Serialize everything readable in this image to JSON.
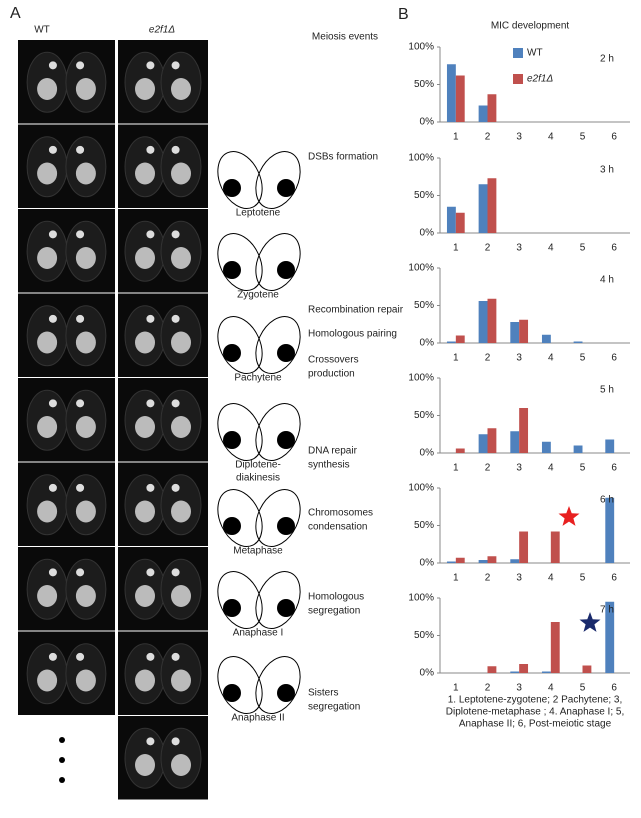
{
  "panel_a": {
    "label": "A",
    "columns": [
      "WT",
      "e2f1Δ"
    ],
    "events_title": "Meiosis events",
    "stages": [
      [
        "Leptotene"
      ],
      [
        "Zygotene"
      ],
      [
        "Pachytene"
      ],
      [
        "Diplotene-",
        "diakinesis"
      ],
      [
        "Metaphase"
      ],
      [
        "Anaphase I"
      ],
      [
        "Anaphase II"
      ]
    ],
    "events": [
      [
        "DSBs formation"
      ],
      [
        "Recombination repair"
      ],
      [
        "Homologous  pairing"
      ],
      [
        "Crossovers",
        "production"
      ],
      [
        "DNA repair",
        "synthesis"
      ],
      [
        "Chromosomes",
        "condensation"
      ],
      [
        "Homologous",
        "segregation"
      ],
      [
        "Sisters",
        "segregation"
      ]
    ]
  },
  "panel_b": {
    "label": "B",
    "title": "MIC development",
    "caption": [
      "1. Leptotene-zygotene; 2 Pachytene; 3,",
      "Diplotene-metaphase ; 4. Anaphase I; 5,",
      "Anaphase II; 6, Post-meiotic stage"
    ]
  },
  "chart_data": [
    {
      "type": "bar",
      "label": "2 h",
      "categories": [
        "1",
        "2",
        "3",
        "4",
        "5",
        "6"
      ],
      "legend": "top-right",
      "series": [
        {
          "name": "WT",
          "color": "#4f81bd",
          "values": [
            77,
            22,
            0,
            0,
            0,
            0
          ]
        },
        {
          "name": "e2f1Δ",
          "color": "#c0504d",
          "values": [
            62,
            37,
            0,
            0,
            0,
            0
          ]
        }
      ],
      "ylim": [
        0,
        100
      ],
      "yticks": [
        {
          "value": 0,
          "label": "0%"
        },
        {
          "value": 50,
          "label": "50%"
        },
        {
          "value": 100,
          "label": "100%"
        }
      ]
    },
    {
      "type": "bar",
      "label": "3 h",
      "categories": [
        "1",
        "2",
        "3",
        "4",
        "5",
        "6"
      ],
      "series": [
        {
          "color": "#4f81bd",
          "values": [
            35,
            65,
            0,
            0,
            0,
            0
          ]
        },
        {
          "color": "#c0504d",
          "values": [
            27,
            73,
            0,
            0,
            0,
            0
          ]
        }
      ],
      "ylim": [
        0,
        100
      ],
      "yticks": [
        {
          "value": 0,
          "label": "0%"
        },
        {
          "value": 50,
          "label": "50%"
        },
        {
          "value": 100,
          "label": "100%"
        }
      ]
    },
    {
      "type": "bar",
      "label": "4 h",
      "categories": [
        "1",
        "2",
        "3",
        "4",
        "5",
        "6"
      ],
      "series": [
        {
          "color": "#4f81bd",
          "values": [
            2,
            56,
            28,
            11,
            2,
            0
          ]
        },
        {
          "color": "#c0504d",
          "values": [
            10,
            59,
            31,
            0,
            0,
            0
          ]
        }
      ],
      "ylim": [
        0,
        100
      ],
      "yticks": [
        {
          "value": 0,
          "label": "0%"
        },
        {
          "value": 50,
          "label": "50%"
        },
        {
          "value": 100,
          "label": "100%"
        }
      ]
    },
    {
      "type": "bar",
      "label": "5 h",
      "categories": [
        "1",
        "2",
        "3",
        "4",
        "5",
        "6"
      ],
      "series": [
        {
          "color": "#4f81bd",
          "values": [
            0,
            25,
            29,
            15,
            10,
            18
          ]
        },
        {
          "color": "#c0504d",
          "values": [
            6,
            33,
            60,
            0,
            0,
            0
          ]
        }
      ],
      "ylim": [
        0,
        100
      ],
      "yticks": [
        {
          "value": 0,
          "label": "0%"
        },
        {
          "value": 50,
          "label": "50%"
        },
        {
          "value": 100,
          "label": "100%"
        }
      ]
    },
    {
      "type": "bar",
      "label": "6 h",
      "categories": [
        "1",
        "2",
        "3",
        "4",
        "5",
        "6"
      ],
      "series": [
        {
          "color": "#4f81bd",
          "values": [
            2,
            4,
            5,
            0,
            0,
            87
          ]
        },
        {
          "color": "#c0504d",
          "values": [
            7,
            9,
            42,
            42,
            0,
            0
          ]
        }
      ],
      "ylim": [
        0,
        100
      ],
      "yticks": [
        {
          "value": 0,
          "label": "0%"
        },
        {
          "value": 50,
          "label": "50%"
        },
        {
          "value": 100,
          "label": "100%"
        }
      ]
    },
    {
      "type": "bar",
      "label": "7 h",
      "categories": [
        "1",
        "2",
        "3",
        "4",
        "5",
        "6"
      ],
      "series": [
        {
          "color": "#4f81bd",
          "values": [
            0,
            0,
            2,
            2,
            0,
            95
          ]
        },
        {
          "color": "#c0504d",
          "values": [
            0,
            9,
            12,
            68,
            10,
            0
          ]
        }
      ],
      "ylim": [
        0,
        100
      ],
      "yticks": [
        {
          "value": 0,
          "label": "0%"
        },
        {
          "value": 50,
          "label": "50%"
        },
        {
          "value": 100,
          "label": "100%"
        }
      ]
    }
  ]
}
